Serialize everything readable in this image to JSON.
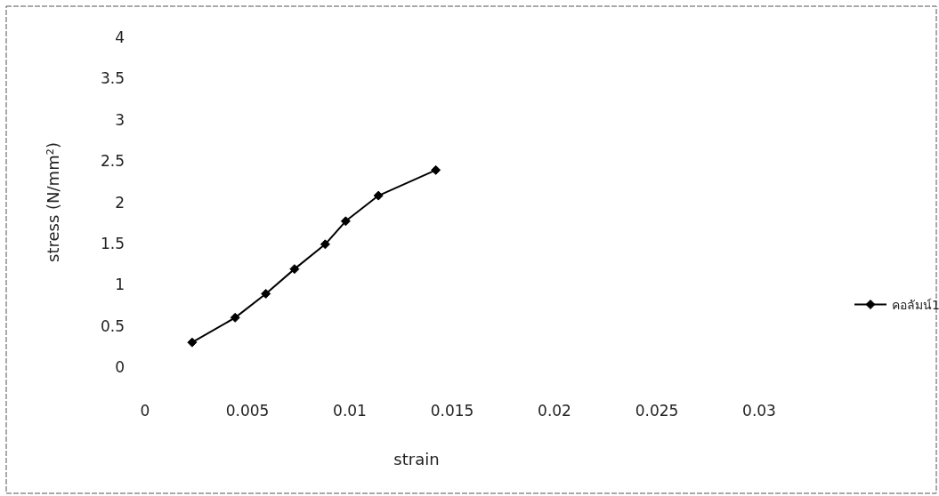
{
  "chart_data": {
    "type": "line",
    "xlabel": "strain",
    "ylabel": "stress (N/mm²)",
    "x": [
      0.0023,
      0.0044,
      0.0059,
      0.0073,
      0.0088,
      0.0098,
      0.0114,
      0.0142
    ],
    "series": [
      {
        "name": "คอลัมน์1",
        "color": "#000000",
        "values": [
          0.3,
          0.6,
          0.89,
          1.19,
          1.49,
          1.77,
          2.08,
          2.39
        ]
      }
    ],
    "xlim": [
      0,
      0.03
    ],
    "xticks": [
      0,
      0.005,
      0.01,
      0.015,
      0.02,
      0.025,
      0.03
    ],
    "ylim": [
      0,
      4
    ],
    "yticks": [
      0,
      0.5,
      1,
      1.5,
      2,
      2.5,
      3,
      3.5,
      4
    ],
    "grid": false,
    "legend": "right",
    "marker": "diamond",
    "line_style": "solid"
  }
}
